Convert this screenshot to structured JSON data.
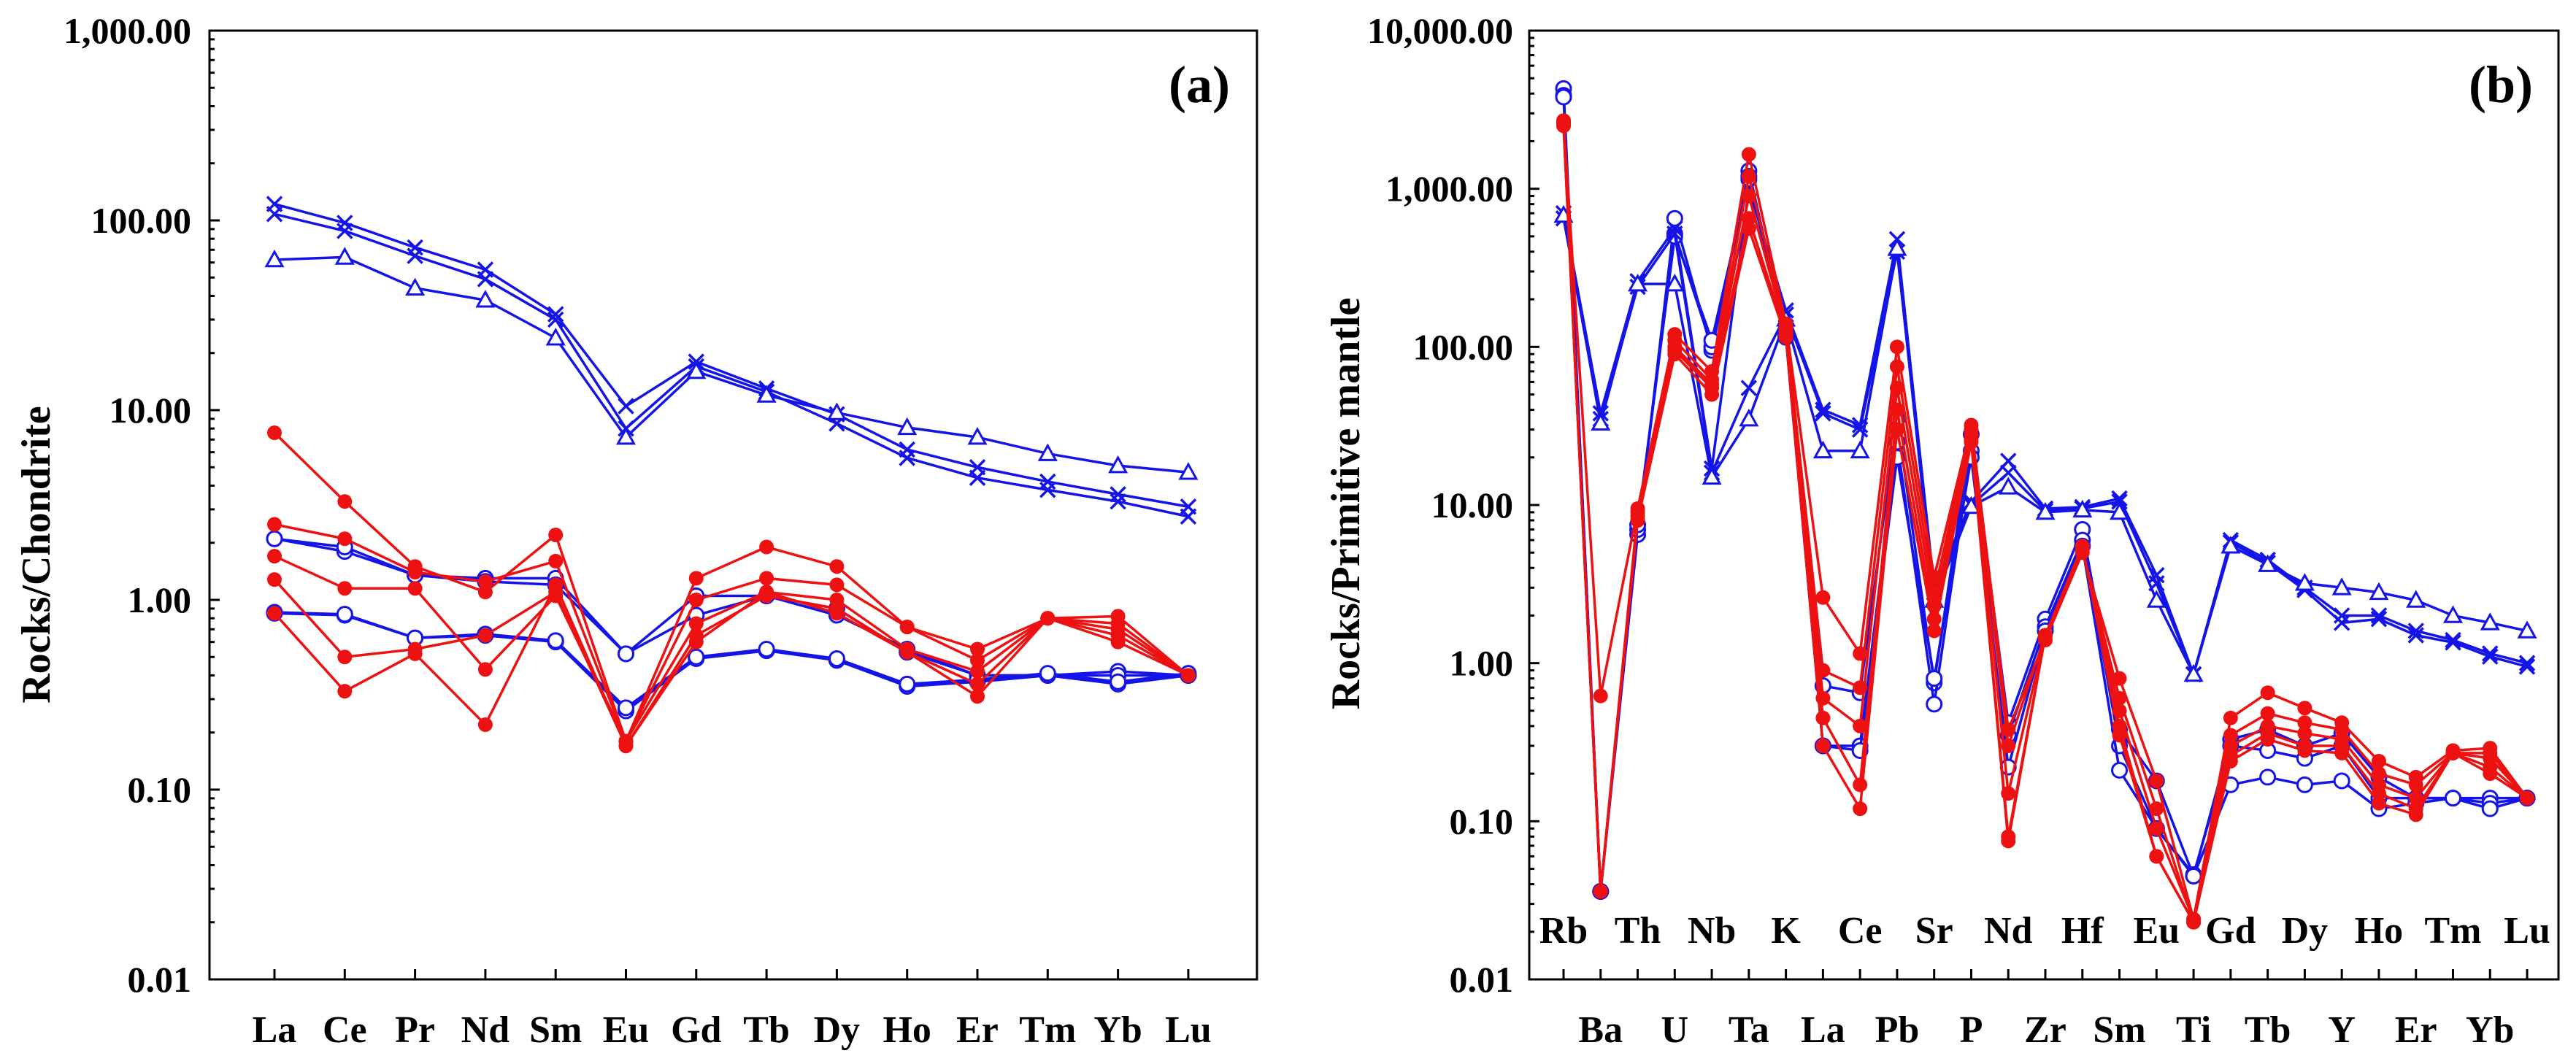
{
  "colors": {
    "red": "#ee1111",
    "blue": "#1414e8"
  },
  "chart_data": [
    {
      "type": "line",
      "panel_label": "(a)",
      "title": "",
      "xlabel": "",
      "ylabel": "Rocks/Chondrite",
      "yscale": "log",
      "ylim": [
        0.01,
        1000
      ],
      "ytick_labels": [
        "1,000.00",
        "100.00",
        "10.00",
        "1.00",
        "0.10",
        "0.01"
      ],
      "categories": [
        "La",
        "Ce",
        "Pr",
        "Nd",
        "Sm",
        "Eu",
        "Gd",
        "Tb",
        "Dy",
        "Ho",
        "Er",
        "Tm",
        "Yb",
        "Lu"
      ],
      "series": [
        {
          "name": "red-1",
          "color": "red",
          "marker": "dot",
          "values": [
            7.6,
            3.3,
            1.5,
            1.1,
            2.2,
            0.18,
            1.3,
            1.9,
            1.5,
            0.72,
            0.55,
            0.8,
            0.82,
            0.4
          ]
        },
        {
          "name": "red-2",
          "color": "red",
          "marker": "dot",
          "values": [
            2.5,
            2.1,
            1.4,
            1.25,
            1.6,
            0.18,
            1.0,
            1.3,
            1.2,
            0.72,
            0.48,
            0.8,
            0.75,
            0.4
          ]
        },
        {
          "name": "red-3",
          "color": "red",
          "marker": "dot",
          "values": [
            1.7,
            1.15,
            1.15,
            0.43,
            1.05,
            0.18,
            0.75,
            1.1,
            1.0,
            0.55,
            0.42,
            0.8,
            0.7,
            0.4
          ]
        },
        {
          "name": "red-4",
          "color": "red",
          "marker": "dot",
          "values": [
            1.28,
            0.5,
            0.55,
            0.65,
            1.1,
            0.17,
            0.65,
            1.05,
            0.9,
            0.53,
            0.36,
            0.8,
            0.65,
            0.4
          ]
        },
        {
          "name": "red-5",
          "color": "red",
          "marker": "dot",
          "values": [
            0.85,
            0.33,
            0.52,
            0.22,
            1.2,
            0.17,
            0.6,
            1.1,
            0.85,
            0.53,
            0.31,
            0.8,
            0.6,
            0.4
          ]
        },
        {
          "name": "blue-open-1",
          "color": "blue",
          "marker": "circle",
          "values": [
            2.1,
            1.8,
            1.35,
            1.3,
            1.3,
            0.52,
            1.05,
            1.05,
            0.9,
            0.53,
            0.4,
            0.4,
            0.42,
            0.4
          ]
        },
        {
          "name": "blue-open-2",
          "color": "blue",
          "marker": "circle",
          "values": [
            2.1,
            1.9,
            1.35,
            1.25,
            1.2,
            0.52,
            0.83,
            1.05,
            0.83,
            0.55,
            0.4,
            0.4,
            0.4,
            0.4
          ]
        },
        {
          "name": "blue-open-3",
          "color": "blue",
          "marker": "circle",
          "values": [
            0.85,
            0.83,
            0.63,
            0.65,
            0.6,
            0.26,
            0.49,
            0.54,
            0.48,
            0.35,
            0.37,
            0.4,
            0.36,
            0.4
          ]
        },
        {
          "name": "blue-open-4",
          "color": "blue",
          "marker": "circle",
          "values": [
            0.86,
            0.84,
            0.63,
            0.66,
            0.61,
            0.27,
            0.5,
            0.55,
            0.49,
            0.36,
            0.38,
            0.41,
            0.37,
            0.41
          ]
        },
        {
          "name": "blue-x-1",
          "color": "blue",
          "marker": "x",
          "values": [
            122,
            97,
            72,
            55,
            32,
            10.5,
            18,
            13,
            9.5,
            6.2,
            5.0,
            4.2,
            3.6,
            3.1
          ]
        },
        {
          "name": "blue-x-2",
          "color": "blue",
          "marker": "x",
          "values": [
            108,
            88,
            65,
            49,
            30,
            8.0,
            17,
            12.5,
            8.5,
            5.6,
            4.4,
            3.8,
            3.3,
            2.75
          ]
        },
        {
          "name": "blue-tri",
          "color": "blue",
          "marker": "triangle",
          "values": [
            62,
            64,
            44,
            38,
            24,
            7.2,
            16,
            12,
            9.7,
            8.1,
            7.2,
            5.9,
            5.1,
            4.7
          ]
        }
      ]
    },
    {
      "type": "line",
      "panel_label": "(b)",
      "title": "",
      "xlabel": "",
      "ylabel": "Rocks/Primitive mantle",
      "yscale": "log",
      "ylim": [
        0.01,
        10000
      ],
      "ytick_labels": [
        "10,000.00",
        "1,000.00",
        "100.00",
        "10.00",
        "1.00",
        "0.10",
        "0.01"
      ],
      "categories": [
        "Rb",
        "Ba",
        "Th",
        "U",
        "Nb",
        "Ta",
        "K",
        "La",
        "Ce",
        "Pb",
        "Sr",
        "P",
        "Nd",
        "Zr",
        "Hf",
        "Sm",
        "Eu",
        "Ti",
        "Gd",
        "Tb",
        "Dy",
        "Y",
        "Ho",
        "Er",
        "Tm",
        "Yb",
        "Lu"
      ],
      "upper_labels": [
        "Rb",
        "Th",
        "Nb",
        "K",
        "Ce",
        "Sr",
        "Nd",
        "Hf",
        "Eu",
        "Gd",
        "Dy",
        "Ho",
        "Tm",
        "Lu"
      ],
      "lower_labels": [
        "Ba",
        "U",
        "Ta",
        "La",
        "Pb",
        "P",
        "Zr",
        "Sm",
        "Ti",
        "Tb",
        "Y",
        "Er",
        "Yb"
      ],
      "series": [
        {
          "name": "red-1",
          "color": "red",
          "marker": "dot",
          "values": [
            2700,
            0.62,
            9.5,
            120,
            70,
            1650,
            140,
            2.6,
            1.15,
            100,
            3.5,
            32,
            0.38,
            1.4,
            5.0,
            0.8,
            0.18,
            0.024,
            0.45,
            0.65,
            0.52,
            0.42,
            0.24,
            0.19,
            0.28,
            0.29,
            0.14
          ]
        },
        {
          "name": "red-2",
          "color": "red",
          "marker": "dot",
          "values": [
            2650,
            0.036,
            9.0,
            110,
            62,
            1200,
            130,
            0.9,
            0.7,
            75,
            2.8,
            30,
            0.3,
            1.5,
            5.2,
            0.6,
            0.12,
            0.023,
            0.35,
            0.48,
            0.42,
            0.38,
            0.2,
            0.17,
            0.27,
            0.27,
            0.14
          ]
        },
        {
          "name": "red-3",
          "color": "red",
          "marker": "dot",
          "values": [
            2600,
            0.036,
            8.5,
            100,
            58,
            900,
            125,
            0.6,
            0.4,
            55,
            2.3,
            28,
            0.15,
            1.5,
            5.3,
            0.5,
            0.09,
            0.024,
            0.3,
            0.4,
            0.36,
            0.33,
            0.17,
            0.14,
            0.27,
            0.25,
            0.14
          ]
        },
        {
          "name": "red-4",
          "color": "red",
          "marker": "dot",
          "values": [
            2550,
            0.036,
            8.0,
            95,
            55,
            650,
            120,
            0.45,
            0.17,
            40,
            1.9,
            26,
            0.08,
            1.5,
            5.4,
            0.4,
            0.06,
            0.023,
            0.26,
            0.36,
            0.3,
            0.3,
            0.15,
            0.12,
            0.27,
            0.22,
            0.14
          ]
        },
        {
          "name": "red-5",
          "color": "red",
          "marker": "dot",
          "values": [
            2500,
            0.036,
            8.0,
            90,
            50,
            560,
            115,
            0.3,
            0.12,
            30,
            1.6,
            25,
            0.075,
            1.5,
            5.5,
            0.35,
            0.06,
            0.023,
            0.24,
            0.33,
            0.28,
            0.27,
            0.13,
            0.11,
            0.27,
            0.2,
            0.14
          ]
        },
        {
          "name": "blue-open-1",
          "color": "blue",
          "marker": "circle",
          "values": [
            4300,
            0.036,
            6.5,
            650,
            95,
            1300,
            120,
            0.72,
            0.65,
            35,
            0.75,
            28,
            0.42,
            1.9,
            7.0,
            0.38,
            0.18,
            0.045,
            0.33,
            0.38,
            0.3,
            0.36,
            0.19,
            0.14,
            0.14,
            0.14,
            0.14
          ]
        },
        {
          "name": "blue-open-2",
          "color": "blue",
          "marker": "circle",
          "values": [
            3900,
            0.036,
            7.0,
            520,
            100,
            1200,
            120,
            0.3,
            0.3,
            25,
            0.55,
            22,
            0.35,
            1.7,
            6.0,
            0.3,
            0.09,
            0.046,
            0.3,
            0.28,
            0.25,
            0.3,
            0.14,
            0.14,
            0.14,
            0.13,
            0.14
          ]
        },
        {
          "name": "blue-open-3",
          "color": "blue",
          "marker": "circle",
          "values": [
            3800,
            0.036,
            7.5,
            500,
            110,
            1150,
            115,
            0.3,
            0.28,
            20,
            0.8,
            20,
            0.22,
            1.6,
            5.5,
            0.21,
            0.09,
            0.045,
            0.17,
            0.19,
            0.17,
            0.18,
            0.12,
            0.13,
            0.14,
            0.12,
            0.14
          ]
        },
        {
          "name": "blue-x-1",
          "color": "blue",
          "marker": "x",
          "values": [
            700,
            38,
            260,
            560,
            17,
            1000,
            170,
            40,
            32,
            480,
            3.0,
            10.5,
            19,
            9.5,
            9.7,
            11,
            3.6,
            0.85,
            6.0,
            4.5,
            3.0,
            2.0,
            2.0,
            1.6,
            1.4,
            1.15,
            1.0
          ]
        },
        {
          "name": "blue-x-2",
          "color": "blue",
          "marker": "x",
          "values": [
            650,
            35,
            240,
            520,
            16,
            55,
            160,
            38,
            30,
            400,
            2.8,
            10,
            16,
            9.2,
            9.5,
            10.5,
            3.2,
            0.85,
            5.8,
            4.3,
            2.9,
            1.8,
            1.9,
            1.5,
            1.35,
            1.1,
            0.95
          ]
        },
        {
          "name": "blue-tri",
          "color": "blue",
          "marker": "triangle",
          "values": [
            680,
            33,
            250,
            250,
            15,
            35,
            150,
            22,
            22,
            420,
            2.5,
            9.8,
            13,
            9.0,
            9.3,
            9.0,
            2.5,
            0.85,
            5.5,
            4.2,
            3.2,
            3.0,
            2.8,
            2.5,
            2.0,
            1.8,
            1.6
          ]
        }
      ]
    }
  ]
}
